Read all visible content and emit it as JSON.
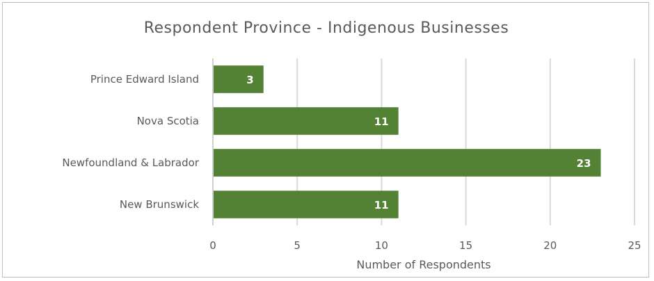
{
  "chart_data": {
    "type": "bar",
    "orientation": "horizontal",
    "title": "Respondent Province - Indigenous Businesses",
    "categories": [
      "New Brunswick",
      "Newfoundland & Labrador",
      "Nova Scotia",
      "Prince Edward Island"
    ],
    "values": [
      11,
      23,
      11,
      3
    ],
    "xlabel": "Number of Respondents",
    "ylabel": "",
    "xlim": [
      0,
      25
    ],
    "xticks": [
      "0",
      "5",
      "10",
      "15",
      "20",
      "25"
    ],
    "grid": "vertical",
    "data_labels": true,
    "legend": "none",
    "bar_color": "#548235"
  }
}
